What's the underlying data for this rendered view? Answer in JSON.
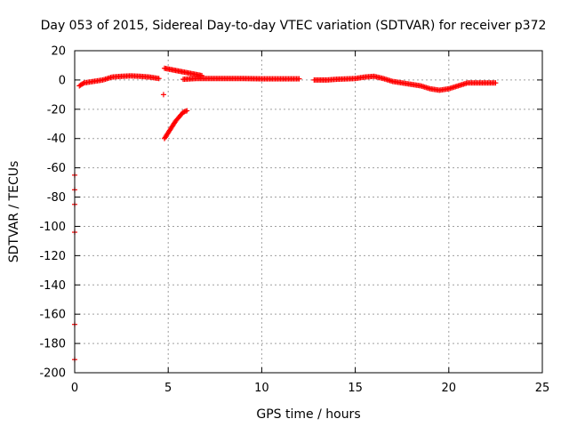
{
  "chart_data": {
    "type": "scatter",
    "title": "Day 053 of 2015, Sidereal Day-to-day VTEC variation (SDTVAR) for receiver p372",
    "xlabel": "GPS time / hours",
    "ylabel": "SDTVAR / TECUs",
    "xlim": [
      0,
      25
    ],
    "ylim": [
      -200,
      20
    ],
    "xticks": [
      0,
      5,
      10,
      15,
      20,
      25
    ],
    "yticks": [
      20,
      0,
      -20,
      -40,
      -60,
      -80,
      -100,
      -120,
      -140,
      -160,
      -180,
      -200
    ],
    "grid": true,
    "marker": "+",
    "color": "#ff0000",
    "series": [
      {
        "name": "SDTVAR",
        "segments": [
          {
            "x": [
              0.25,
              0.5,
              1.0,
              1.5,
              2.0,
              2.5,
              3.0,
              3.5,
              4.0,
              4.5
            ],
            "y": [
              -4,
              -2,
              -1,
              0,
              2,
              2.5,
              2.8,
              2.5,
              2,
              1
            ]
          },
          {
            "x": [
              4.8,
              5.0,
              5.2,
              5.4,
              5.6,
              5.8,
              6.0
            ],
            "y": [
              -40,
              -36,
              -32,
              -28,
              -25,
              -22,
              -21
            ]
          },
          {
            "x": [
              4.8,
              5.2,
              5.6,
              6.0,
              6.4,
              6.8
            ],
            "y": [
              8,
              7,
              6,
              5,
              4,
              3
            ]
          },
          {
            "x": [
              5.8,
              6.5,
              7.0,
              8.0,
              9.0,
              10.0,
              11.0,
              12.0
            ],
            "y": [
              0.5,
              1,
              1,
              1,
              1,
              0.8,
              0.8,
              0.8
            ]
          },
          {
            "x": [
              12.8,
              13.5,
              14.0,
              15.0,
              15.5,
              16.0,
              16.5,
              17.0,
              17.5,
              18.0,
              18.5,
              19.0,
              19.5,
              20.0,
              20.5,
              21.0,
              21.5,
              22.0,
              22.5
            ],
            "y": [
              0,
              0,
              0.5,
              1,
              2,
              2.5,
              1,
              -1,
              -2,
              -3,
              -4,
              -6,
              -7,
              -6,
              -4,
              -2,
              -2,
              -2,
              -2
            ]
          },
          {
            "x": [
              0.0,
              0.0,
              0.0,
              0.0,
              0.0,
              0.0,
              4.75
            ],
            "y": [
              -65,
              -75,
              -85,
              -104,
              -167,
              -191,
              -10
            ]
          }
        ]
      }
    ]
  }
}
